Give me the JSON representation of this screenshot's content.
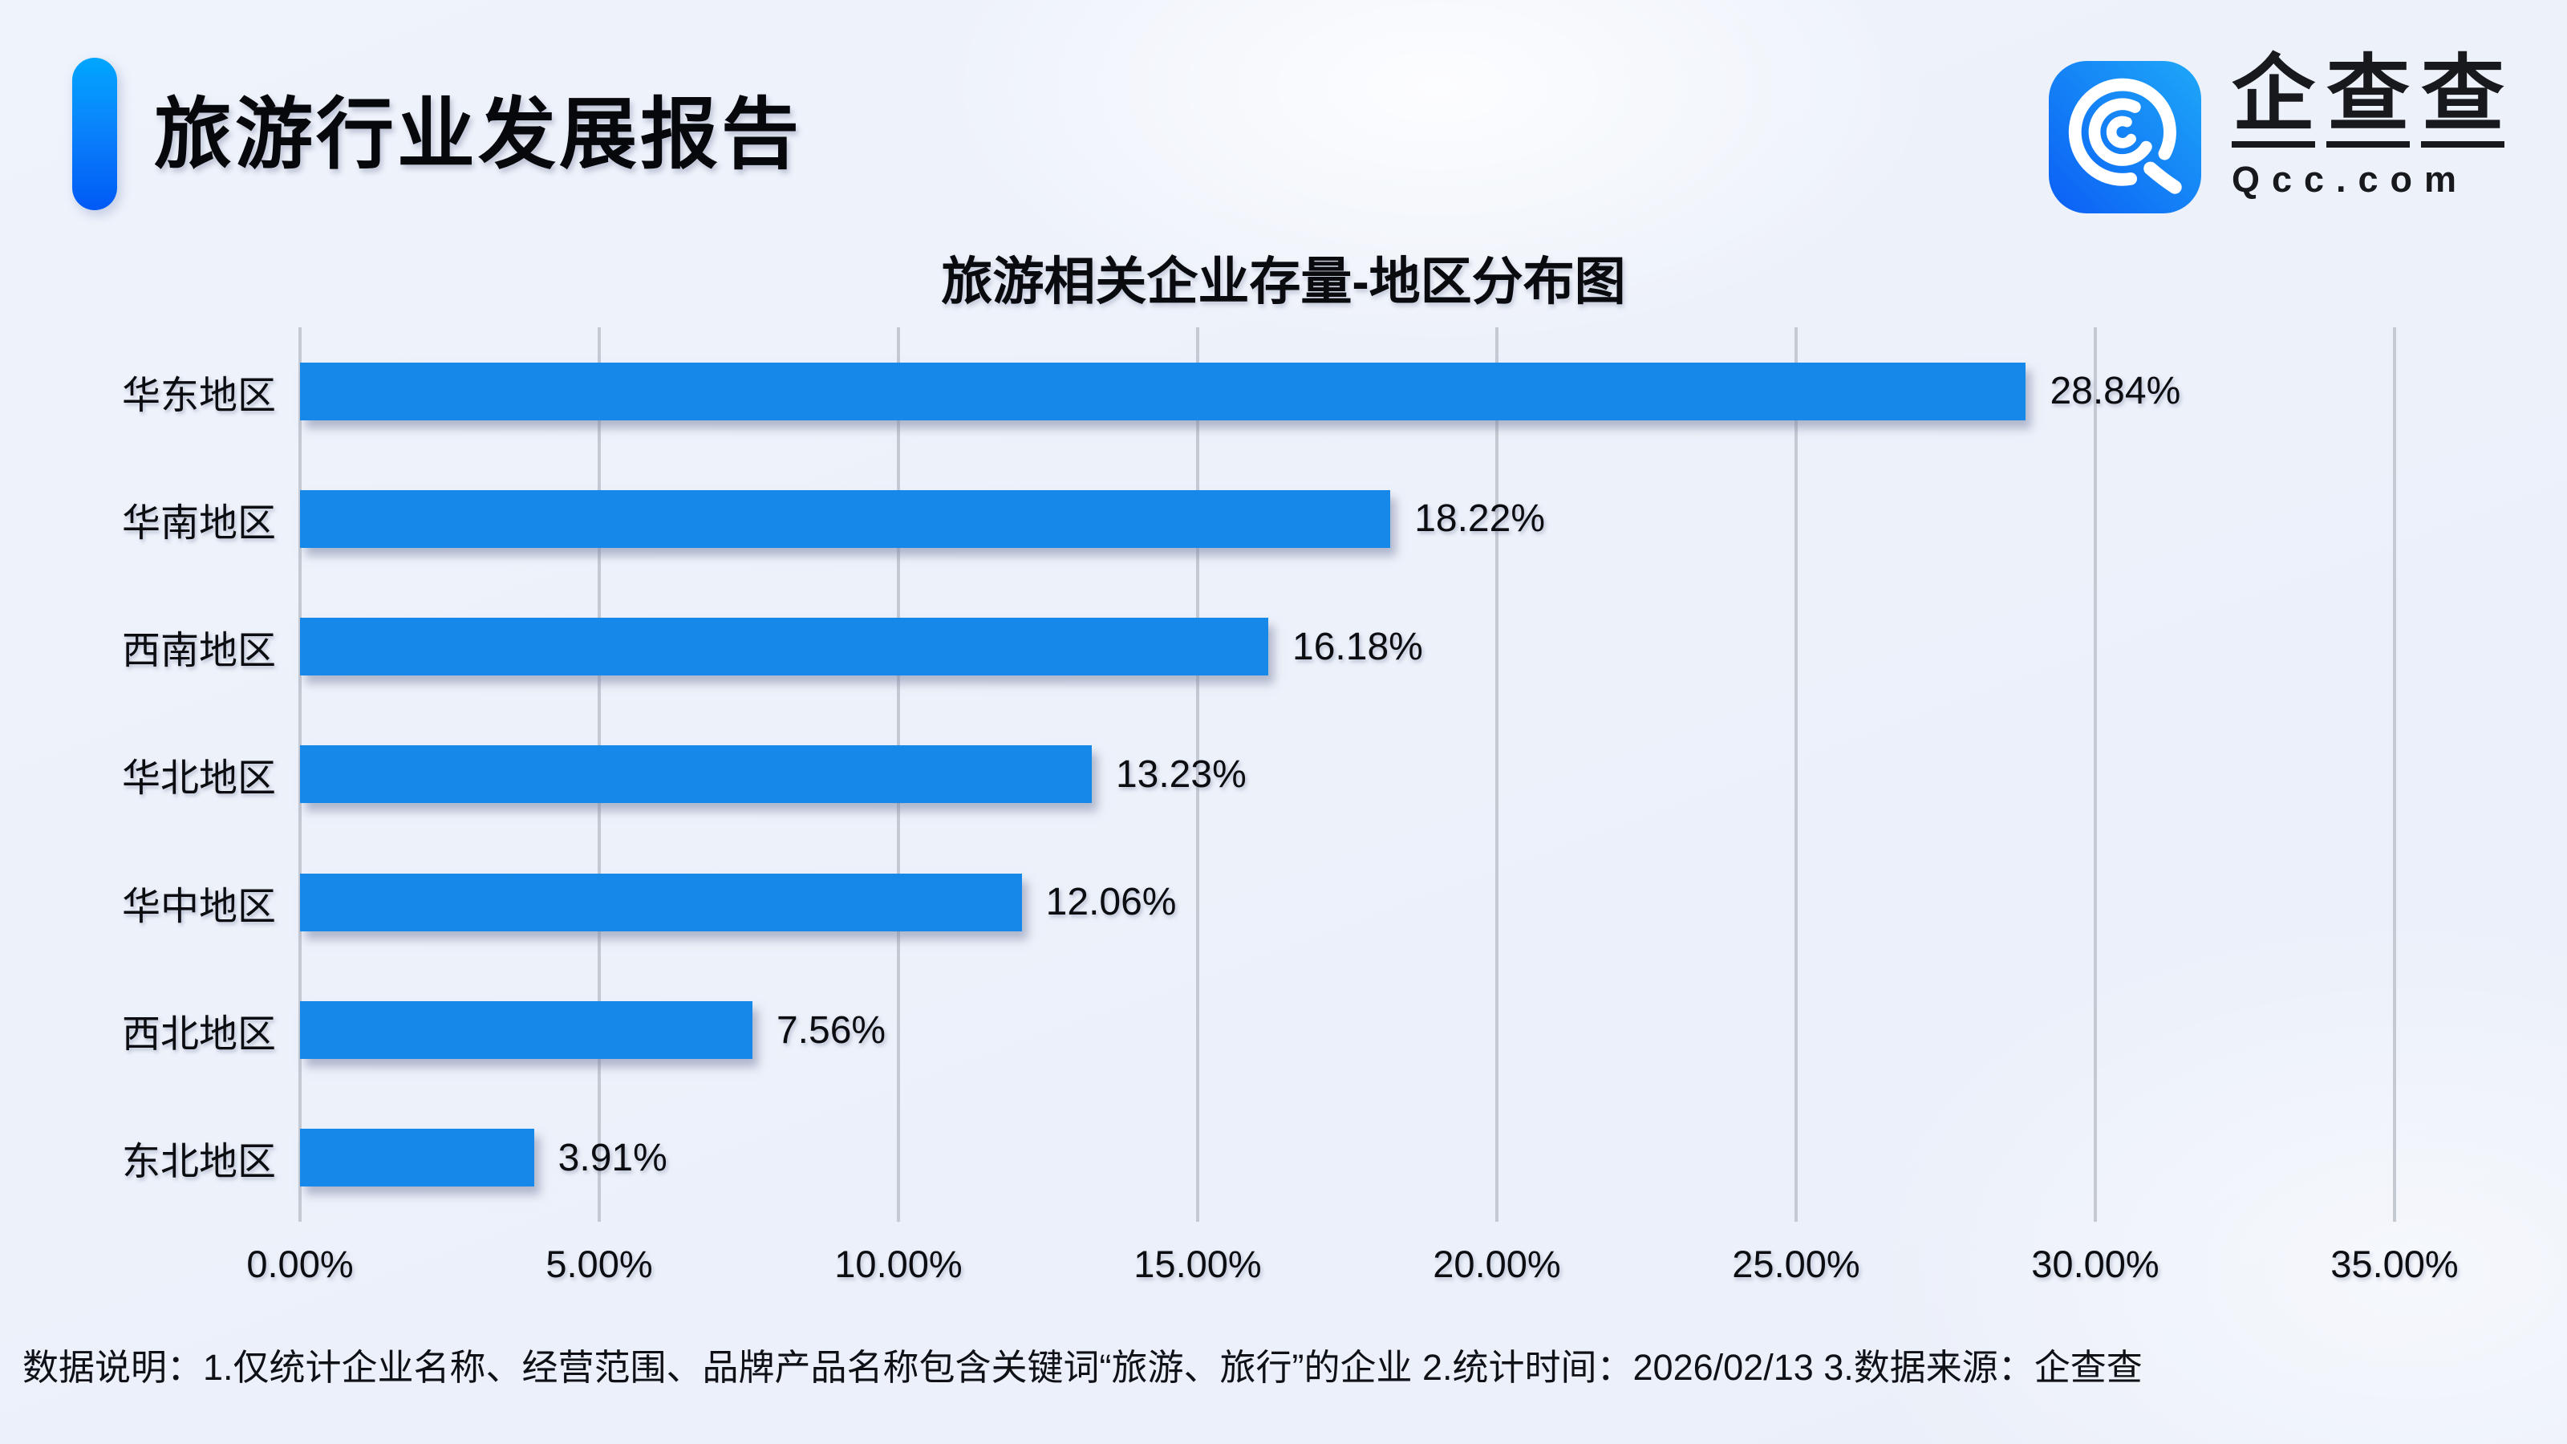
{
  "page": {
    "background": "#eef2fa"
  },
  "header": {
    "title": "旅游行业发展报告",
    "accent_gradient": [
      "#00a6ff",
      "#0059f6"
    ]
  },
  "logo": {
    "brand_cn": [
      "企",
      "查",
      "查"
    ],
    "brand_en": "Qcc.com",
    "icon": "qcc-spiral-magnifier-icon",
    "tile_gradient": [
      "#0b5ef5",
      "#1ea8f8"
    ]
  },
  "chart_data": {
    "type": "bar",
    "orientation": "horizontal",
    "title": "旅游相关企业存量-地区分布图",
    "categories": [
      "华东地区",
      "华南地区",
      "西南地区",
      "华北地区",
      "华中地区",
      "西北地区",
      "东北地区"
    ],
    "values": [
      28.84,
      18.22,
      16.18,
      13.23,
      12.06,
      7.56,
      3.91
    ],
    "value_labels": [
      "28.84%",
      "18.22%",
      "16.18%",
      "13.23%",
      "12.06%",
      "7.56%",
      "3.91%"
    ],
    "xlabel": "",
    "ylabel": "",
    "xlim": [
      0,
      35
    ],
    "ticks": [
      "0.00%",
      "5.00%",
      "10.00%",
      "15.00%",
      "20.00%",
      "25.00%",
      "30.00%",
      "35.00%"
    ],
    "bar_color": "#1588e9",
    "gridline_color": "#c5c9d2",
    "grid": "vertical-only",
    "legend": "none"
  },
  "footnote": {
    "text": "数据说明：1.仅统计企业名称、经营范围、品牌产品名称包含关键词“旅游、旅行”的企业  2.统计时间：2026/02/13  3.数据来源：企查查"
  }
}
